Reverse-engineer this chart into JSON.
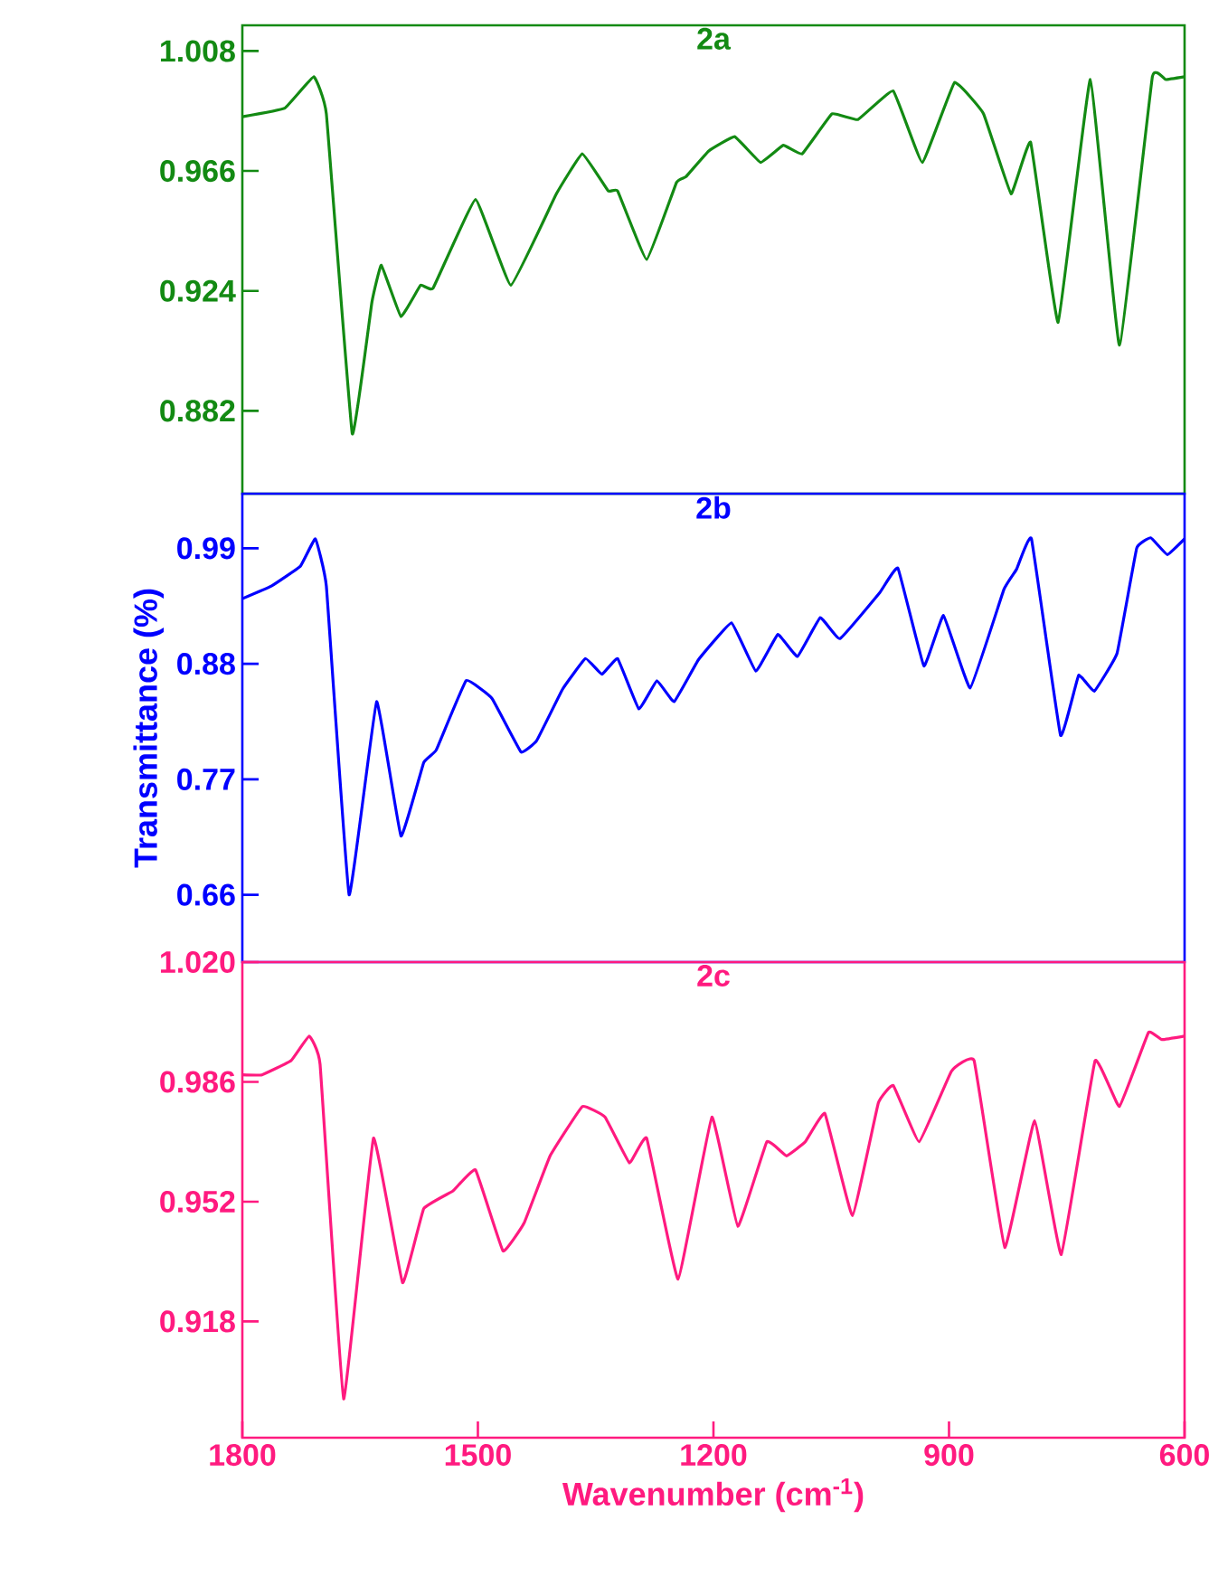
{
  "chart_data": [
    {
      "type": "line",
      "title": "2a",
      "color": "#138a13",
      "xlim": [
        1800,
        600
      ],
      "ylim": [
        0.853,
        1.017
      ],
      "yticks": [
        1.008,
        0.966,
        0.924,
        0.882
      ],
      "tick_labels": "y",
      "grid": false,
      "marker": "none",
      "x": [
        1800,
        1746,
        1709,
        1693,
        1660,
        1635,
        1623,
        1598,
        1573,
        1557,
        1503,
        1458,
        1400,
        1367,
        1334,
        1322,
        1285,
        1247,
        1235,
        1206,
        1173,
        1140,
        1111,
        1087,
        1049,
        1016,
        971,
        934,
        893,
        856,
        821,
        796,
        761,
        720,
        683,
        641,
        624,
        600
      ],
      "values": [
        0.985,
        0.988,
        0.999,
        0.986,
        0.874,
        0.92,
        0.933,
        0.915,
        0.926,
        0.925,
        0.956,
        0.926,
        0.958,
        0.972,
        0.959,
        0.959,
        0.935,
        0.962,
        0.964,
        0.973,
        0.978,
        0.969,
        0.975,
        0.972,
        0.986,
        0.984,
        0.994,
        0.969,
        0.997,
        0.986,
        0.958,
        0.976,
        0.913,
        0.998,
        0.905,
        0.999,
        0.998,
        0.999
      ]
    },
    {
      "type": "line",
      "title": "2b",
      "ylabel": "Transmittance (%)",
      "color": "#0000ff",
      "xlim": [
        1800,
        600
      ],
      "ylim": [
        0.596,
        1.042
      ],
      "yticks": [
        0.99,
        0.88,
        0.77,
        0.66
      ],
      "tick_labels": "y",
      "grid": false,
      "marker": "none",
      "x": [
        1800,
        1763,
        1726,
        1707,
        1693,
        1664,
        1629,
        1598,
        1569,
        1553,
        1515,
        1482,
        1445,
        1425,
        1392,
        1363,
        1342,
        1322,
        1295,
        1272,
        1250,
        1219,
        1177,
        1146,
        1118,
        1093,
        1064,
        1039,
        988,
        965,
        932,
        907,
        873,
        830,
        814,
        795,
        758,
        735,
        715,
        686,
        661,
        643,
        622,
        600
      ],
      "values": [
        0.942,
        0.954,
        0.973,
        0.999,
        0.954,
        0.66,
        0.844,
        0.716,
        0.786,
        0.798,
        0.864,
        0.847,
        0.796,
        0.807,
        0.856,
        0.885,
        0.87,
        0.885,
        0.837,
        0.864,
        0.844,
        0.884,
        0.919,
        0.873,
        0.908,
        0.887,
        0.924,
        0.904,
        0.948,
        0.971,
        0.878,
        0.926,
        0.857,
        0.951,
        0.97,
        0.999,
        0.812,
        0.869,
        0.854,
        0.89,
        0.99,
        1.0,
        0.984,
        0.999
      ]
    },
    {
      "type": "line",
      "title": "2c",
      "xlabel": "Wavenumber (cm$^{-1}$)",
      "color": "#ff1a7f",
      "xlim": [
        1800,
        600
      ],
      "ylim": [
        0.885,
        1.02
      ],
      "xticks": [
        1800,
        1500,
        1200,
        900,
        600
      ],
      "yticks": [
        {
          "value": 1.02,
          "label": "1.020"
        },
        0.986,
        0.952,
        0.918
      ],
      "grid": false,
      "marker": "none",
      "x": [
        1800,
        1775,
        1738,
        1715,
        1701,
        1671,
        1633,
        1596,
        1569,
        1532,
        1503,
        1468,
        1441,
        1408,
        1367,
        1338,
        1307,
        1285,
        1245,
        1202,
        1169,
        1132,
        1107,
        1083,
        1058,
        1023,
        990,
        971,
        938,
        897,
        868,
        829,
        791,
        757,
        714,
        683,
        646,
        629,
        600
      ],
      "values": [
        0.988,
        0.988,
        0.992,
        0.999,
        0.991,
        0.896,
        0.97,
        0.929,
        0.95,
        0.955,
        0.961,
        0.938,
        0.946,
        0.965,
        0.979,
        0.976,
        0.963,
        0.97,
        0.93,
        0.976,
        0.945,
        0.969,
        0.965,
        0.969,
        0.977,
        0.948,
        0.98,
        0.985,
        0.969,
        0.989,
        0.992,
        0.939,
        0.975,
        0.937,
        0.992,
        0.979,
        1.0,
        0.998,
        0.999
      ]
    }
  ]
}
